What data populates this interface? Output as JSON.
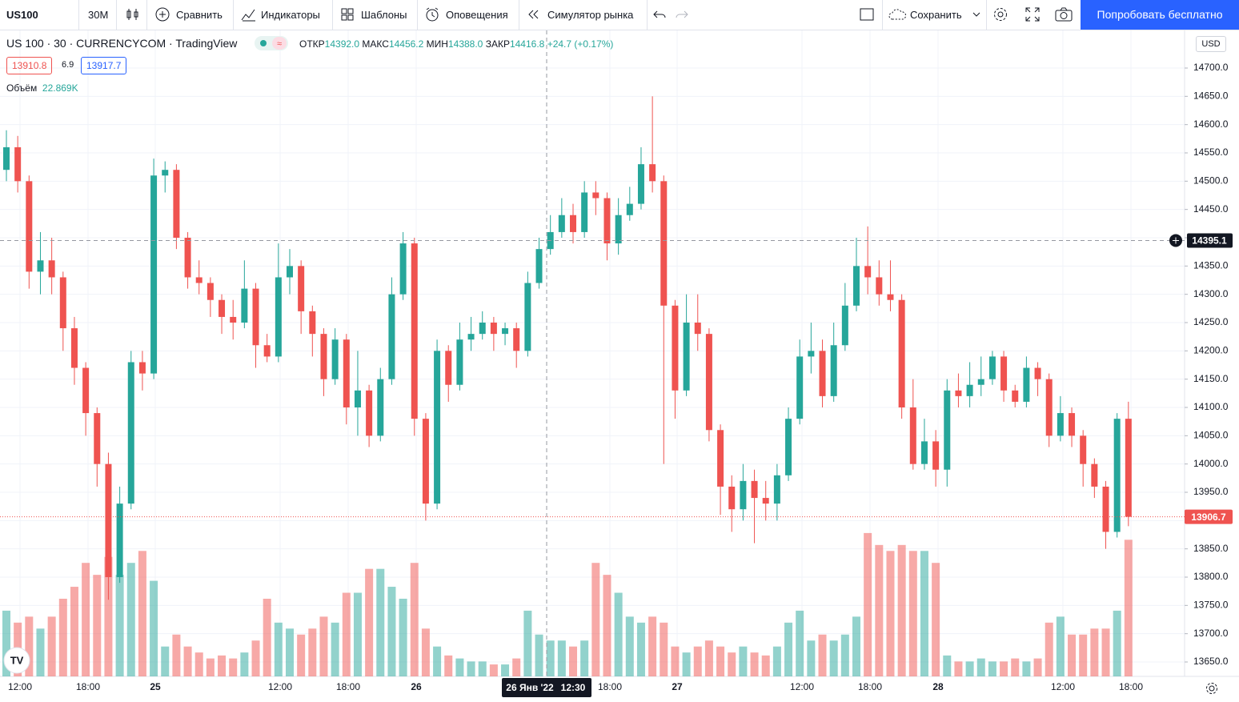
{
  "toolbar": {
    "symbol": "US100",
    "interval": "30М",
    "compare": "Сравнить",
    "indicators": "Индикаторы",
    "templates": "Шаблоны",
    "alerts": "Оповещения",
    "replay": "Симулятор рынка",
    "save": "Сохранить",
    "try_free": "Попробовать бесплатно"
  },
  "legend": {
    "title": "US 100 · 30 · CURRENCYCOM · TradingView",
    "open_label": "ОТКР",
    "open": "14392.0",
    "high_label": "МАКС",
    "high": "14456.2",
    "low_label": "МИН",
    "low": "14388.0",
    "close_label": "ЗАКР",
    "close": "14416.8",
    "change": "+24.7 (+0.17%)",
    "bid": "13910.8",
    "spread": "6.9",
    "ask": "13917.7",
    "volume_label": "Объём",
    "volume": "22.869K"
  },
  "currency": "USD",
  "chart_data": {
    "type": "candlestick",
    "up_color": "#26a69a",
    "down_color": "#ef5350",
    "time_labels": [
      "12:00",
      "18:00",
      "25",
      "12:00",
      "18:00",
      "26",
      "18:00",
      "27",
      "12:00",
      "18:00",
      "28",
      "12:00",
      "18:00"
    ],
    "open": [
      14520,
      14560,
      14500,
      14340,
      14360,
      14330,
      14240,
      14170,
      14090,
      14000,
      13800,
      13930,
      14180,
      14160,
      14510,
      14520,
      14400,
      14330,
      14320,
      14290,
      14260,
      14250,
      14310,
      14210,
      14190,
      14330,
      14350,
      14270,
      14230,
      14150,
      14220,
      14100,
      14130,
      14050,
      14150,
      14300,
      14390,
      14080,
      13930,
      14200,
      14140,
      14220,
      14230,
      14250,
      14230,
      14240,
      14200,
      14320,
      14380,
      14410,
      14440,
      14410,
      14480,
      14470,
      14390,
      14440,
      14460,
      14530,
      14500,
      14280,
      14130,
      14250,
      14230,
      14060,
      13960,
      13920,
      13970,
      13940,
      13930,
      13980,
      14080,
      14190,
      14200,
      14120,
      14210,
      14280,
      14350,
      14330,
      14300,
      14290,
      14100,
      14000,
      14040,
      13990,
      14130,
      14120,
      14140,
      14150,
      14190,
      14130,
      14110,
      14170,
      14150,
      14050,
      14090,
      14050,
      14000,
      13960,
      13880,
      14080
    ],
    "high": [
      14590,
      14580,
      14510,
      14410,
      14400,
      14340,
      14260,
      14180,
      14100,
      14020,
      13960,
      14200,
      14200,
      14540,
      14535,
      14530,
      14410,
      14360,
      14330,
      14300,
      14290,
      14360,
      14320,
      14230,
      14390,
      14380,
      14360,
      14280,
      14240,
      14240,
      14230,
      14200,
      14140,
      14170,
      14330,
      14410,
      14400,
      14090,
      14220,
      14210,
      14250,
      14260,
      14270,
      14260,
      14250,
      14250,
      14340,
      14400,
      14440,
      14470,
      14460,
      14500,
      14500,
      14480,
      14470,
      14490,
      14560,
      14650,
      14510,
      14290,
      14300,
      14300,
      14240,
      14070,
      13980,
      14000,
      13990,
      13970,
      14000,
      14100,
      14220,
      14250,
      14220,
      14250,
      14320,
      14400,
      14420,
      14360,
      14360,
      14300,
      14150,
      14080,
      14060,
      14150,
      14160,
      14180,
      14190,
      14200,
      14200,
      14140,
      14190,
      14180,
      14160,
      14120,
      14100,
      14060,
      14010,
      13970,
      14090,
      14110
    ],
    "low": [
      14500,
      14480,
      14310,
      14300,
      14300,
      14200,
      14140,
      14050,
      13960,
      13760,
      13790,
      13920,
      14130,
      14150,
      14480,
      14380,
      14310,
      14300,
      14260,
      14230,
      14220,
      14240,
      14170,
      14180,
      14180,
      14300,
      14230,
      14190,
      14120,
      14140,
      14070,
      14050,
      14030,
      14040,
      14140,
      14290,
      14050,
      13900,
      13920,
      14110,
      14130,
      14200,
      14220,
      14200,
      14210,
      14170,
      14190,
      14310,
      14370,
      14400,
      14390,
      14400,
      14440,
      14360,
      14370,
      14430,
      14450,
      14480,
      14000,
      14080,
      14120,
      14200,
      14040,
      13910,
      13880,
      13900,
      13860,
      13900,
      13900,
      13970,
      14070,
      14160,
      14100,
      14110,
      14200,
      14270,
      14300,
      14280,
      14270,
      14080,
      13990,
      13990,
      13960,
      13960,
      14100,
      14100,
      14120,
      14140,
      14110,
      14100,
      14100,
      14120,
      14030,
      14040,
      14030,
      13960,
      13940,
      13850,
      13870,
      13890
    ],
    "close": [
      14560,
      14500,
      14340,
      14360,
      14330,
      14240,
      14170,
      14090,
      14000,
      13800,
      13930,
      14180,
      14160,
      14510,
      14520,
      14400,
      14330,
      14320,
      14290,
      14260,
      14250,
      14310,
      14210,
      14190,
      14330,
      14350,
      14270,
      14230,
      14150,
      14220,
      14100,
      14130,
      14050,
      14150,
      14300,
      14390,
      14080,
      13930,
      14200,
      14140,
      14220,
      14230,
      14250,
      14230,
      14240,
      14200,
      14320,
      14380,
      14410,
      14440,
      14410,
      14480,
      14470,
      14390,
      14440,
      14460,
      14530,
      14500,
      14280,
      14130,
      14250,
      14230,
      14060,
      13960,
      13920,
      13970,
      13940,
      13930,
      13980,
      14080,
      14190,
      14200,
      14120,
      14210,
      14280,
      14350,
      14330,
      14300,
      14290,
      14100,
      14000,
      14040,
      13990,
      14130,
      14120,
      14140,
      14150,
      14190,
      14130,
      14110,
      14170,
      14150,
      14050,
      14090,
      14050,
      14000,
      13960,
      13880,
      14080,
      13906.7
    ],
    "volume": [
      11000,
      9000,
      10000,
      8000,
      10000,
      13000,
      15000,
      19000,
      17000,
      20000,
      17000,
      19000,
      21000,
      16000,
      5000,
      7000,
      5000,
      4000,
      3000,
      3500,
      3000,
      4000,
      6000,
      13000,
      9000,
      8000,
      7000,
      8000,
      10000,
      9000,
      14000,
      14000,
      18000,
      18000,
      15000,
      13000,
      19000,
      8000,
      5000,
      3500,
      3000,
      2500,
      2500,
      2000,
      2000,
      3000,
      11000,
      7000,
      6000,
      6000,
      5000,
      6000,
      19000,
      17000,
      14000,
      10000,
      9000,
      10000,
      9000,
      5000,
      4000,
      5000,
      6000,
      5000,
      4000,
      5000,
      4000,
      3500,
      5000,
      9000,
      11000,
      6000,
      7000,
      6000,
      7000,
      10000,
      24000,
      22000,
      21000,
      22000,
      21000,
      21000,
      19000,
      3500,
      2500,
      2500,
      3000,
      2500,
      2500,
      3000,
      2500,
      3000,
      9000,
      10000,
      7000,
      7000,
      8000,
      8000,
      11000,
      22869
    ],
    "ylim": [
      13625,
      14750
    ],
    "yticks": [
      {
        "value": 14700,
        "label": "14700.0"
      },
      {
        "value": 14650,
        "label": "14650.0"
      },
      {
        "value": 14600,
        "label": "14600.0"
      },
      {
        "value": 14550,
        "label": "14550.0"
      },
      {
        "value": 14500,
        "label": "14500.0"
      },
      {
        "value": 14450,
        "label": "14450.0"
      },
      {
        "value": 14400,
        "label": "14400.0"
      },
      {
        "value": 14350,
        "label": "14350.0"
      },
      {
        "value": 14300,
        "label": "14300.0"
      },
      {
        "value": 14250,
        "label": "14250.0"
      },
      {
        "value": 14200,
        "label": "14200.0"
      },
      {
        "value": 14150,
        "label": "14150.0"
      },
      {
        "value": 14100,
        "label": "14100.0"
      },
      {
        "value": 14050,
        "label": "14050.0"
      },
      {
        "value": 14000,
        "label": "14000.0"
      },
      {
        "value": 13950,
        "label": "13950.0"
      },
      {
        "value": 13900,
        "label": "13900.0"
      },
      {
        "value": 13850,
        "label": "13850.0"
      },
      {
        "value": 13800,
        "label": "13800.0"
      },
      {
        "value": 13750,
        "label": "13750.0"
      },
      {
        "value": 13700,
        "label": "13700.0"
      },
      {
        "value": 13650,
        "label": "13650.0"
      }
    ],
    "grid": true,
    "crosshair": {
      "price": 14395.1,
      "date": "26 Янв '22",
      "time": "12:30"
    }
  }
}
